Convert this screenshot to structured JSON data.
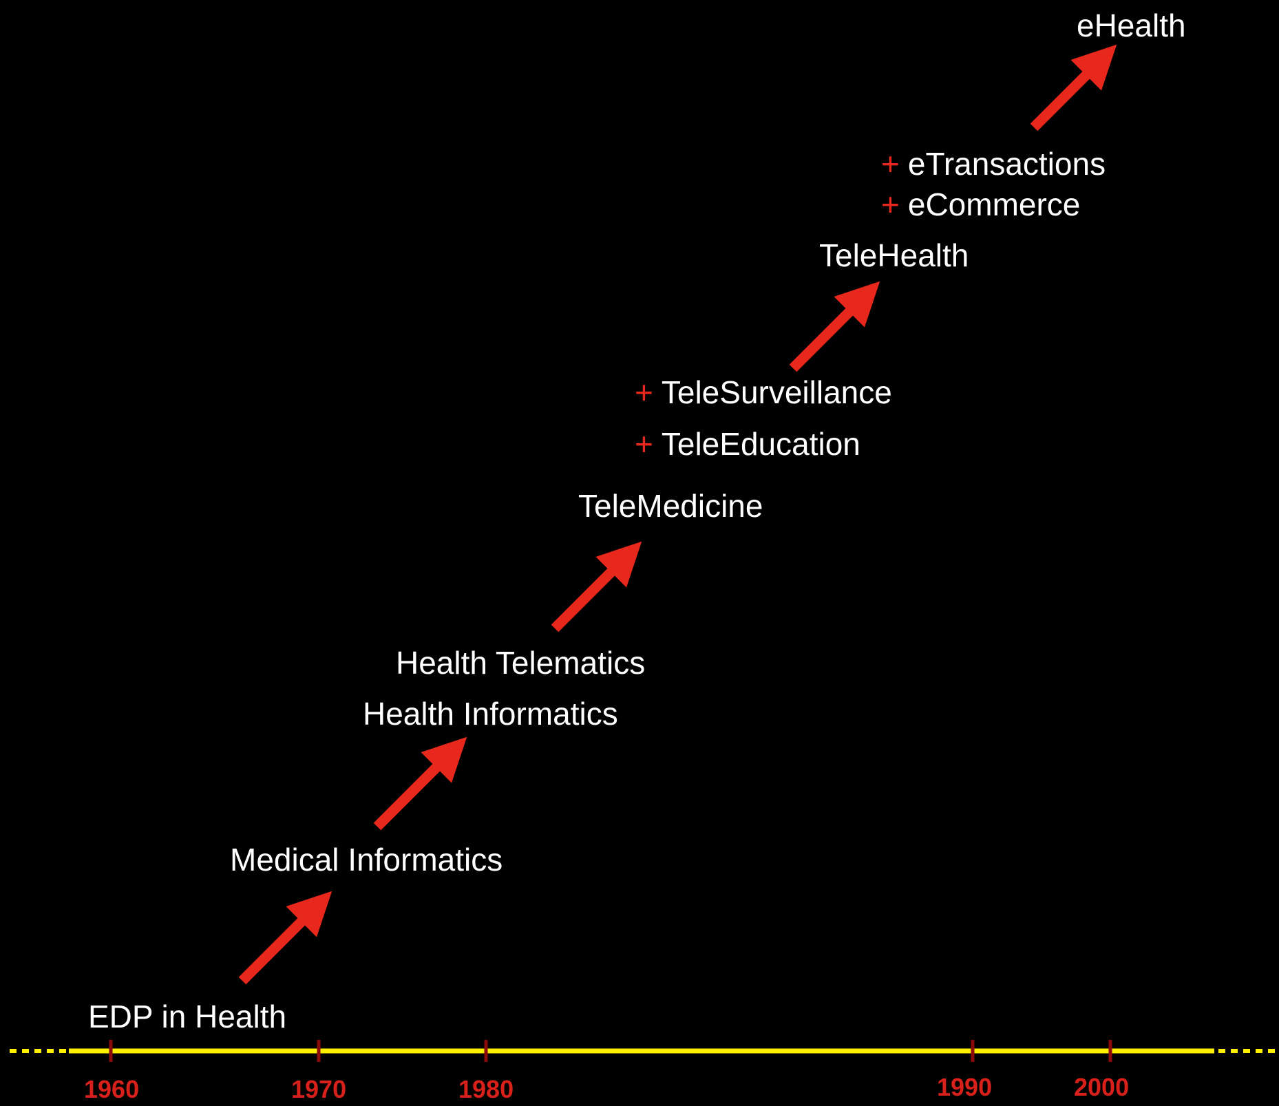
{
  "terms": {
    "edp": "EDP in Health",
    "medical_informatics": "Medical Informatics",
    "health_informatics": "Health Informatics",
    "health_telematics": "Health Telematics",
    "telemedicine": "TeleMedicine",
    "teleeducation": "TeleEducation",
    "telesurveillance": "TeleSurveillance",
    "telehealth": "TeleHealth",
    "ecommerce": "eCommerce",
    "etransactions": "eTransactions",
    "ehealth": "eHealth"
  },
  "plus_sign": "+",
  "timeline": {
    "years": [
      "1960",
      "1970",
      "1980",
      "1990",
      "2000"
    ]
  },
  "colors": {
    "background": "#000000",
    "text": "#ffffff",
    "arrow": "#e8281c",
    "timeline": "#ffef00",
    "tick": "#8b0a0a",
    "year": "#d8211a"
  },
  "icons": {
    "arrow": "diagonal-up-right-arrow-icon"
  }
}
